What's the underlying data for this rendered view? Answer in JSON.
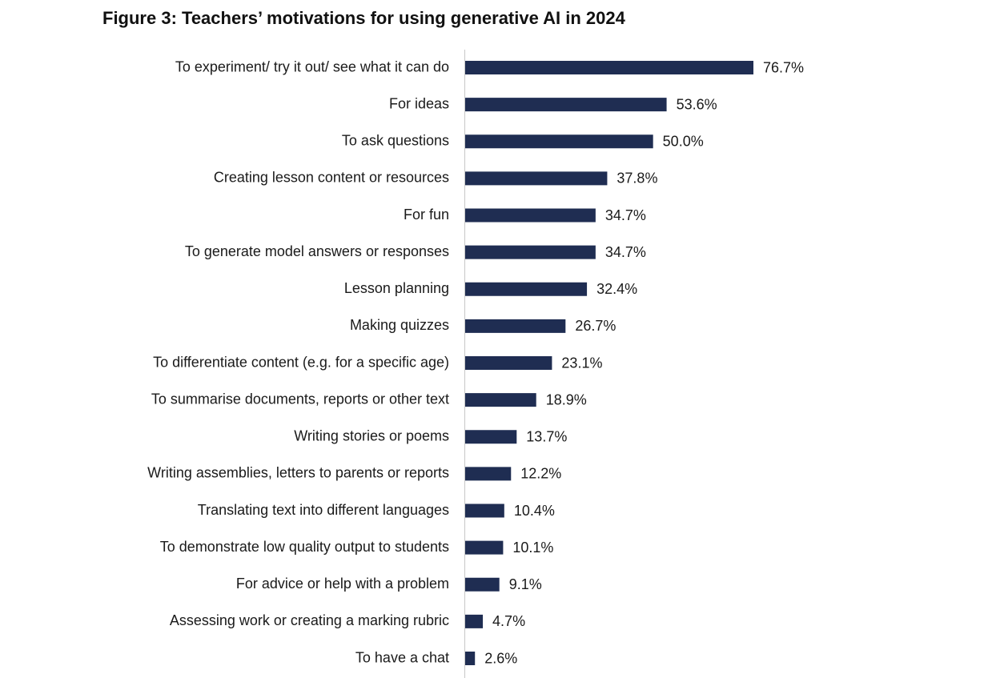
{
  "chart_data": {
    "type": "bar",
    "orientation": "horizontal",
    "title": "Figure 3: Teachers’ motivations for using generative AI in 2024",
    "value_suffix": "%",
    "bar_color": "#1f2d52",
    "axis_color": "#c8c8c8",
    "categories": [
      "To experiment/ try it out/ see what it can do",
      "For ideas",
      "To ask questions",
      "Creating lesson content or resources",
      "For fun",
      "To generate model answers or responses",
      "Lesson planning",
      "Making quizzes",
      "To differentiate content (e.g. for a specific age)",
      "To summarise documents, reports or other text",
      "Writing stories or poems",
      "Writing assemblies, letters to parents or reports",
      "Translating text into different languages",
      "To demonstrate low quality output to students",
      "For advice or help with a problem",
      "Assessing work or creating a marking rubric",
      "To have a chat"
    ],
    "values": [
      76.7,
      53.6,
      50.0,
      37.8,
      34.7,
      34.7,
      32.4,
      26.7,
      23.1,
      18.9,
      13.7,
      12.2,
      10.4,
      10.1,
      9.1,
      4.7,
      2.6
    ],
    "value_labels": [
      "76.7%",
      "53.6%",
      "50.0%",
      "37.8%",
      "34.7%",
      "34.7%",
      "32.4%",
      "26.7%",
      "23.1%",
      "18.9%",
      "13.7%",
      "12.2%",
      "10.4%",
      "10.1%",
      "9.1%",
      "4.7%",
      "2.6%"
    ],
    "xlabel": "",
    "ylabel": "",
    "grid": false,
    "legend": "none"
  }
}
